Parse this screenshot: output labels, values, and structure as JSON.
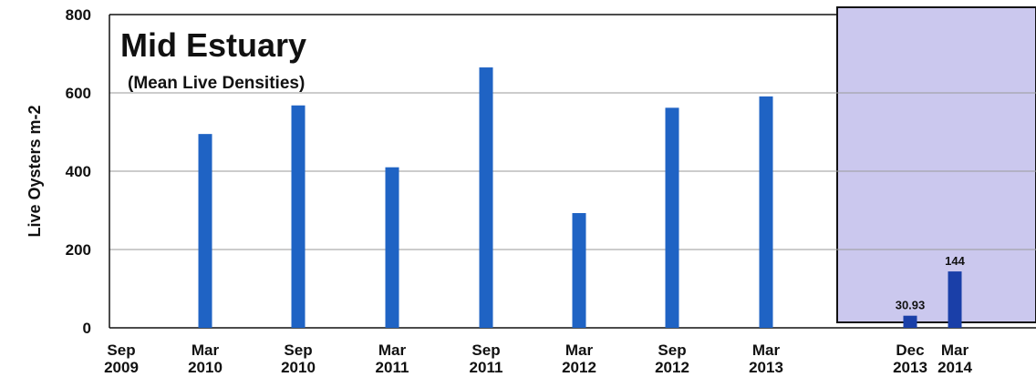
{
  "chart_data": {
    "type": "bar",
    "title": "Mid Estuary",
    "subtitle": "(Mean Live Densities)",
    "ylabel": "Live Oysters m-2",
    "xlabel": "",
    "ylim": [
      0,
      800
    ],
    "yticks": [
      0,
      200,
      400,
      600,
      800
    ],
    "grid": true,
    "x_ticks": [
      {
        "month": "Sep",
        "year": "2009"
      },
      {
        "month": "Mar",
        "year": "2010"
      },
      {
        "month": "Sep",
        "year": "2010"
      },
      {
        "month": "Mar",
        "year": "2011"
      },
      {
        "month": "Sep",
        "year": "2011"
      },
      {
        "month": "Mar",
        "year": "2012"
      },
      {
        "month": "Sep",
        "year": "2012"
      },
      {
        "month": "Mar",
        "year": "2013"
      },
      {
        "month": "Dec",
        "year": "2013"
      },
      {
        "month": "Mar",
        "year": "2014"
      }
    ],
    "categories": [
      "Mar 2010",
      "Sep 2010",
      "Mar 2011",
      "Sep 2011",
      "Mar 2012",
      "Sep 2012",
      "Mar 2013",
      "Dec 2013",
      "Mar 2014"
    ],
    "values": [
      495,
      568,
      410,
      665,
      293,
      562,
      591,
      30.93,
      144
    ],
    "data_labels": [
      "",
      "",
      "",
      "",
      "",
      "",
      "",
      "30.93",
      "144"
    ],
    "highlight_region": {
      "from": "Dec 2013",
      "to": "Mar 2014",
      "color": "#c9c6ec"
    },
    "bar_color": "#1f63c4",
    "highlight_bar_color": "#1a3fa8"
  }
}
